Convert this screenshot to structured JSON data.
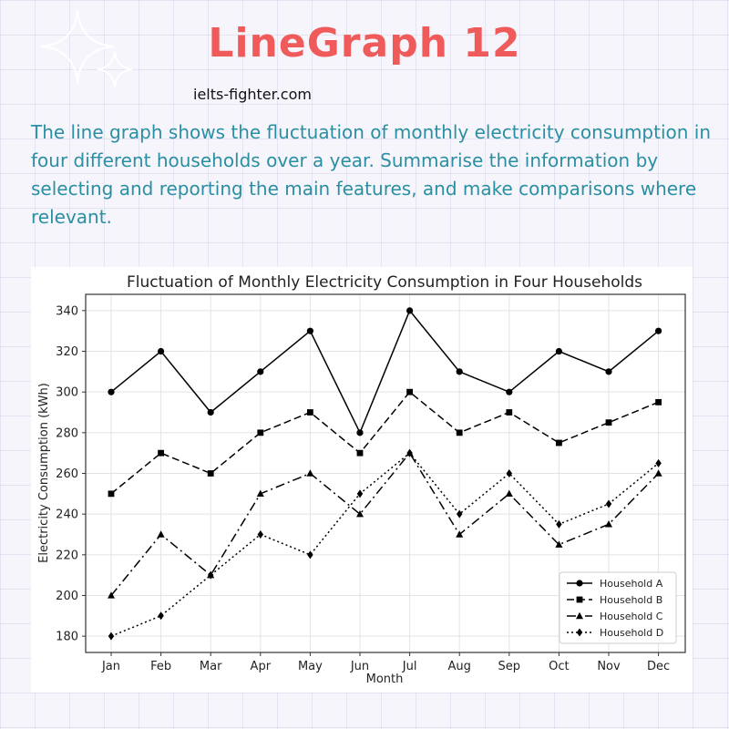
{
  "header": {
    "title": "LineGraph 12",
    "site": "ielts-fighter.com",
    "task": "The line graph shows the fluctuation of monthly electricity consumption in four different households over a year. Summarise the information by selecting and reporting the main features, and make comparisons where relevant.",
    "title_color": "#ef5b5b",
    "task_color": "#2a8fa3"
  },
  "chart_data": {
    "type": "line",
    "title": "Fluctuation of Monthly Electricity Consumption in Four Households",
    "xlabel": "Month",
    "ylabel": "Electricity Consumption (kWh)",
    "categories": [
      "Jan",
      "Feb",
      "Mar",
      "Apr",
      "May",
      "Jun",
      "Jul",
      "Aug",
      "Sep",
      "Oct",
      "Nov",
      "Dec"
    ],
    "ylim": [
      172,
      348
    ],
    "yticks": [
      180,
      200,
      220,
      240,
      260,
      280,
      300,
      320,
      340
    ],
    "grid": true,
    "legend_position": "bottom-right",
    "series": [
      {
        "name": "Household A",
        "values": [
          300,
          320,
          290,
          310,
          330,
          280,
          340,
          310,
          300,
          320,
          310,
          330
        ],
        "line_style": "solid",
        "marker": "circle",
        "color": "#000000"
      },
      {
        "name": "Household B",
        "values": [
          250,
          270,
          260,
          280,
          290,
          270,
          300,
          280,
          290,
          275,
          285,
          295
        ],
        "line_style": "dashed",
        "marker": "square",
        "color": "#000000"
      },
      {
        "name": "Household C",
        "values": [
          200,
          230,
          210,
          250,
          260,
          240,
          270,
          230,
          250,
          225,
          235,
          260
        ],
        "line_style": "dashdot",
        "marker": "triangle",
        "color": "#000000"
      },
      {
        "name": "Household D",
        "values": [
          180,
          190,
          210,
          230,
          220,
          250,
          270,
          240,
          260,
          235,
          245,
          265
        ],
        "line_style": "dotted",
        "marker": "diamond",
        "color": "#000000"
      }
    ]
  }
}
